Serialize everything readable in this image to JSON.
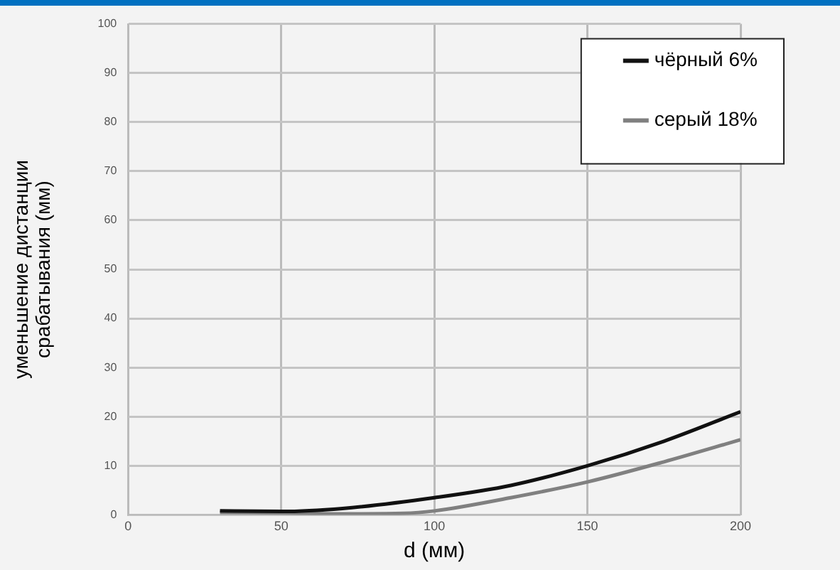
{
  "chart_data": {
    "type": "line",
    "xlabel": "d (мм)",
    "ylabel": "уменьшение дистанции срабатывания (мм)",
    "xlim": [
      0,
      200
    ],
    "xticks": [
      0,
      50,
      100,
      150,
      200
    ],
    "ylim": [
      0,
      100
    ],
    "yticks": [
      0,
      10,
      20,
      30,
      40,
      50,
      60,
      70,
      80,
      90,
      100
    ],
    "grid": true,
    "legend": "top right",
    "marker": "none",
    "line_style": "solid",
    "series": [
      {
        "name": "чёрный 6%",
        "color": "#111111",
        "x": [
          30,
          50,
          70,
          100,
          125,
          150,
          175,
          200
        ],
        "values": [
          0.8,
          0.7,
          1.3,
          3.5,
          6,
          10,
          15,
          21
        ]
      },
      {
        "name": "серый 18%",
        "color": "#808080",
        "x": [
          30,
          50,
          70,
          90,
          100,
          125,
          150,
          175,
          200
        ],
        "values": [
          0.5,
          0.4,
          0.2,
          0.3,
          0.8,
          3.5,
          6.7,
          10.8,
          15.3
        ]
      }
    ]
  }
}
